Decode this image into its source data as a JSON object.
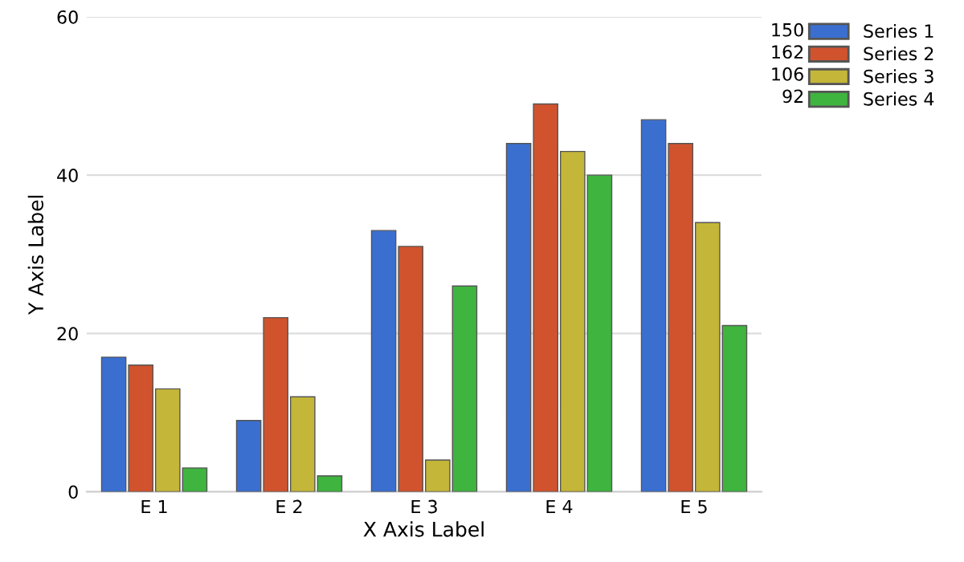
{
  "chart_data": {
    "type": "bar",
    "xlabel": "X Axis Label",
    "ylabel": "Y Axis Label",
    "categories": [
      "E 1",
      "E 2",
      "E 3",
      "E 4",
      "E 5"
    ],
    "series": [
      {
        "name": "Series 1",
        "color": "#3a6fd0",
        "values": [
          17,
          9,
          33,
          44,
          47
        ]
      },
      {
        "name": "Series 2",
        "color": "#d0532e",
        "values": [
          16,
          22,
          31,
          49,
          44
        ]
      },
      {
        "name": "Series 3",
        "color": "#c4b638",
        "values": [
          13,
          12,
          4,
          43,
          34
        ]
      },
      {
        "name": "Series 4",
        "color": "#3fb43f",
        "values": [
          3,
          2,
          26,
          40,
          21
        ]
      }
    ],
    "annotations": [
      "150",
      "162",
      "106",
      "92"
    ],
    "ylim": [
      0,
      60
    ],
    "yticks": [
      0,
      20,
      40,
      60
    ],
    "grid": "y",
    "legend": "top right"
  }
}
